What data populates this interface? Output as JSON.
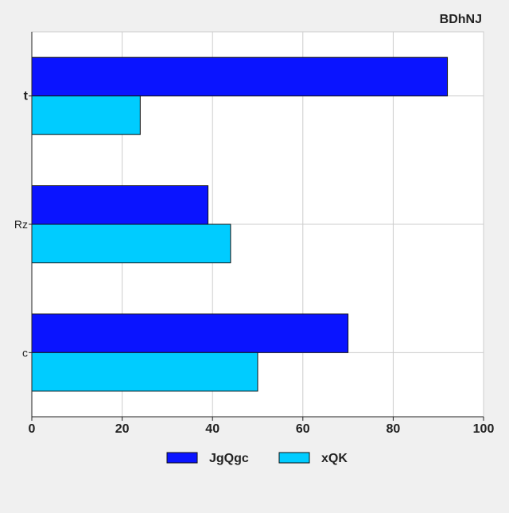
{
  "chart_data": {
    "type": "bar",
    "orientation": "horizontal",
    "title": "BDhNJ",
    "categories": [
      "t",
      "Rz",
      "c"
    ],
    "series": [
      {
        "name": "JgQgc",
        "color": "#0a14ff",
        "values": [
          92,
          39,
          70
        ]
      },
      {
        "name": "xQK",
        "color": "#00ccff",
        "values": [
          24,
          44,
          50
        ]
      }
    ],
    "xlim": [
      0,
      100
    ],
    "xticks": [
      0,
      20,
      40,
      60,
      80,
      100
    ],
    "xtick_labels": [
      "0",
      "20",
      "40",
      "60",
      "80",
      "100"
    ],
    "grid": true,
    "legend_position": "bottom"
  }
}
